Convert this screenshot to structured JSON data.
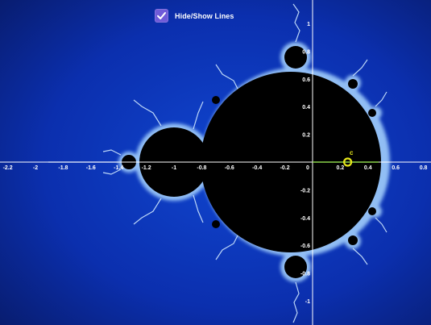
{
  "toggle": {
    "label": "Hide/Show Lines",
    "checked": true
  },
  "axes": {
    "x_ticks": [
      "-2.2",
      "-2",
      "-1.8",
      "-1.6",
      "-1.4",
      "-1.2",
      "-1",
      "-0.8",
      "-0.6",
      "-0.4",
      "-0.2",
      "0",
      "0.2",
      "0.4",
      "0.6",
      "0.8"
    ],
    "y_ticks": [
      "1",
      "0.8",
      "0.6",
      "0.4",
      "0.2",
      "-0.2",
      "-0.4",
      "-0.6",
      "-0.8",
      "-1"
    ]
  },
  "point": {
    "label": "c",
    "x": 0.3,
    "y": 0.0
  },
  "colors": {
    "background_center": "#0b2fae",
    "background_edge": "#0a1f7a",
    "set": "#000000",
    "axis": "#ffffff",
    "point": "#e6e61a",
    "checkbox": "#6f5bd8"
  }
}
